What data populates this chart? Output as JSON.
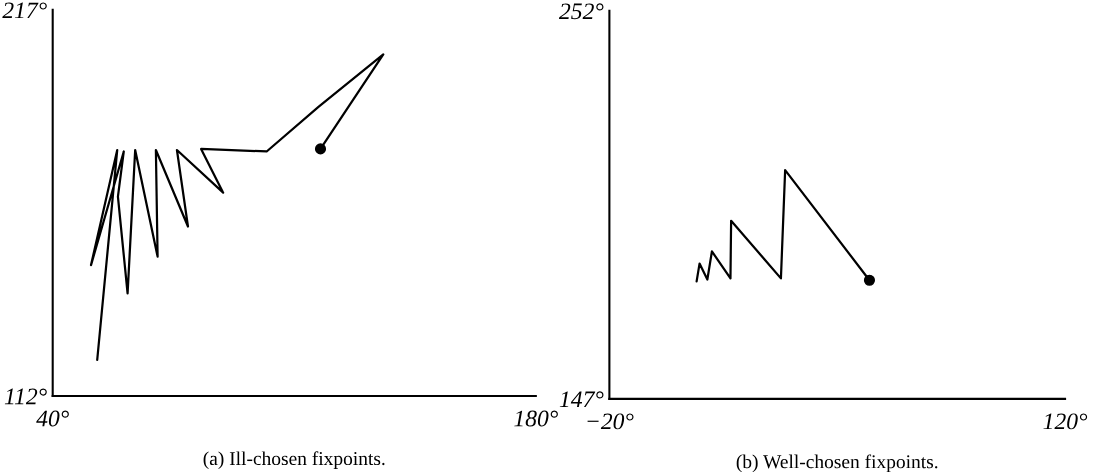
{
  "chart_data": [
    {
      "type": "line",
      "title": "(a) Ill-chosen fixpoints.",
      "xlim": [
        40,
        180
      ],
      "ylim": [
        112,
        217
      ],
      "xticks": [
        {
          "value": 40,
          "label": "40°"
        },
        {
          "value": 180,
          "label": "180°"
        }
      ],
      "yticks": [
        {
          "value": 112,
          "label": "112°"
        },
        {
          "value": 217,
          "label": "217°"
        }
      ],
      "grid": false,
      "line_style": "solid",
      "series": [
        {
          "color": "#000000",
          "marker": "none",
          "x": [
            52.9,
            58.7,
            51.1,
            60.6,
            58.9,
            61.7,
            63.9,
            70.4,
            69.9,
            79.2,
            76.0,
            89.4,
            83.0,
            102.0,
            117.1,
            135.8,
            117.6
          ],
          "values": [
            121.8,
            178.9,
            147.6,
            178.5,
            166.2,
            139.9,
            178.9,
            149.9,
            178.9,
            158.1,
            178.9,
            167.3,
            179.2,
            178.5,
            190.7,
            204.9,
            179.2
          ]
        },
        {
          "type": "scatter",
          "color": "#000000",
          "marker": "circle",
          "x": [
            117.6
          ],
          "values": [
            179.2
          ]
        }
      ]
    },
    {
      "type": "line",
      "title": "(b) Well-chosen fixpoints.",
      "xlim": [
        -20,
        120
      ],
      "ylim": [
        147,
        252
      ],
      "xticks": [
        {
          "value": -20,
          "label": "−20°"
        },
        {
          "value": 120,
          "label": "120°"
        }
      ],
      "yticks": [
        {
          "value": 147,
          "label": "147°"
        },
        {
          "value": 252,
          "label": "252°"
        }
      ],
      "grid": false,
      "line_style": "solid",
      "series": [
        {
          "color": "#000000",
          "marker": "none",
          "x": [
            6.8,
            7.7,
            10.1,
            11.5,
            17.2,
            17.4,
            32.7,
            34.0,
            59.9
          ],
          "values": [
            178.8,
            183.6,
            179.3,
            186.9,
            179.6,
            195.2,
            179.6,
            208.9,
            179.1
          ]
        },
        {
          "type": "scatter",
          "color": "#000000",
          "marker": "circle",
          "x": [
            59.9
          ],
          "values": [
            179.1
          ]
        }
      ]
    }
  ]
}
